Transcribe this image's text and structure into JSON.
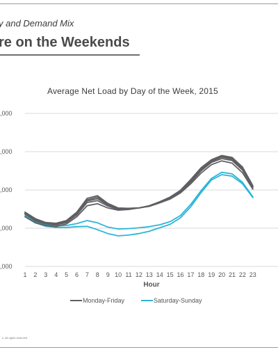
{
  "slide": {
    "section_label": "y and Demand Mix",
    "title": "re on the Weekends",
    "footer": "s. All rights reserved."
  },
  "chart_data": {
    "type": "line",
    "title": "Average Net Load by Day of the Week, 2015",
    "xlabel": "Hour",
    "ylabel": "",
    "x": [
      1,
      2,
      3,
      4,
      5,
      6,
      7,
      8,
      9,
      10,
      11,
      12,
      13,
      14,
      15,
      16,
      17,
      18,
      19,
      20,
      21,
      22,
      23
    ],
    "y_tick_labels": [
      ",000",
      ",000",
      ",000",
      ",000",
      ",000"
    ],
    "ylim": [
      0,
      4
    ],
    "grid": "horizontal",
    "legend_position": "bottom",
    "colors": {
      "weekday": "#5f5f63",
      "weekend": "#2bb5d8"
    },
    "legend": [
      "Monday-Friday",
      "Saturday-Sunday"
    ],
    "series": [
      {
        "name": "Monday-Friday",
        "group": "weekday",
        "values": [
          1.42,
          1.25,
          1.15,
          1.13,
          1.2,
          1.42,
          1.78,
          1.85,
          1.65,
          1.53,
          1.52,
          1.53,
          1.57,
          1.66,
          1.76,
          1.92,
          2.16,
          2.44,
          2.66,
          2.76,
          2.7,
          2.45,
          2.02
        ]
      },
      {
        "name": "Monday-Friday",
        "group": "weekday",
        "values": [
          1.4,
          1.23,
          1.14,
          1.12,
          1.18,
          1.4,
          1.74,
          1.81,
          1.63,
          1.52,
          1.52,
          1.53,
          1.58,
          1.67,
          1.78,
          1.94,
          2.2,
          2.5,
          2.72,
          2.82,
          2.77,
          2.52,
          2.06
        ]
      },
      {
        "name": "Monday-Friday",
        "group": "weekday",
        "values": [
          1.39,
          1.21,
          1.13,
          1.1,
          1.17,
          1.38,
          1.71,
          1.77,
          1.61,
          1.51,
          1.51,
          1.53,
          1.58,
          1.68,
          1.79,
          1.96,
          2.23,
          2.53,
          2.75,
          2.86,
          2.8,
          2.55,
          2.08
        ]
      },
      {
        "name": "Monday-Friday",
        "group": "weekday",
        "values": [
          1.37,
          1.19,
          1.11,
          1.08,
          1.15,
          1.35,
          1.67,
          1.72,
          1.58,
          1.49,
          1.5,
          1.53,
          1.59,
          1.69,
          1.81,
          1.98,
          2.25,
          2.56,
          2.77,
          2.88,
          2.83,
          2.58,
          2.1
        ]
      },
      {
        "name": "Monday-Friday",
        "group": "weekday",
        "values": [
          1.3,
          1.14,
          1.07,
          1.04,
          1.11,
          1.3,
          1.59,
          1.64,
          1.53,
          1.47,
          1.49,
          1.53,
          1.58,
          1.69,
          1.81,
          1.99,
          2.27,
          2.58,
          2.79,
          2.9,
          2.85,
          2.6,
          2.11
        ]
      },
      {
        "name": "Saturday-Sunday",
        "group": "weekend",
        "values": [
          1.34,
          1.17,
          1.08,
          1.06,
          1.07,
          1.12,
          1.2,
          1.14,
          1.03,
          0.98,
          0.99,
          1.01,
          1.04,
          1.09,
          1.17,
          1.33,
          1.62,
          1.98,
          2.3,
          2.46,
          2.42,
          2.2,
          1.82
        ]
      },
      {
        "name": "Saturday-Sunday",
        "group": "weekend",
        "values": [
          1.3,
          1.14,
          1.05,
          1.02,
          1.02,
          1.04,
          1.05,
          0.96,
          0.86,
          0.8,
          0.82,
          0.86,
          0.92,
          1.01,
          1.1,
          1.27,
          1.56,
          1.93,
          2.26,
          2.4,
          2.36,
          2.16,
          1.8
        ]
      }
    ]
  }
}
